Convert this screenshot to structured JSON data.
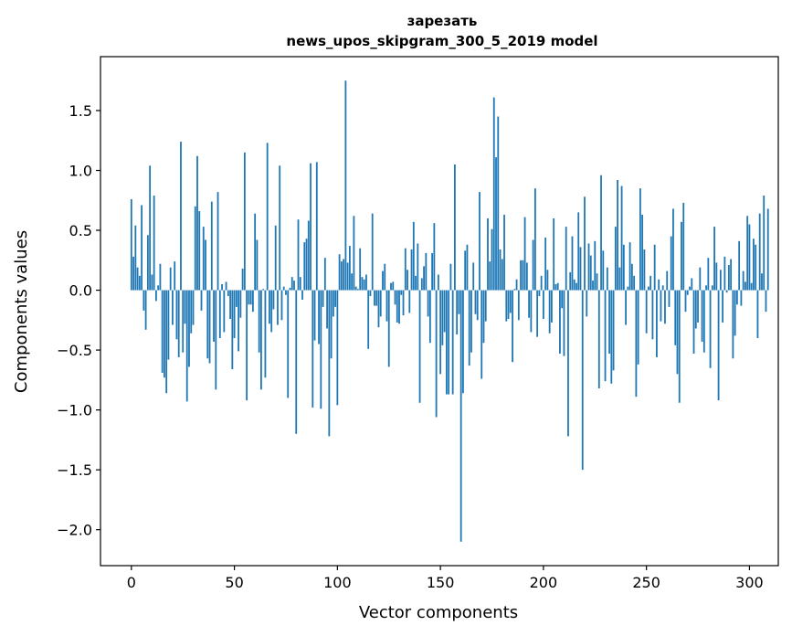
{
  "chart_data": {
    "type": "bar",
    "title": [
      "зарезать",
      "news_upos_skipgram_300_5_2019 model"
    ],
    "xlabel": "Vector components",
    "ylabel": "Components values",
    "xlim": [
      -15,
      314
    ],
    "ylim": [
      -2.3,
      1.95
    ],
    "xticks": [
      0,
      50,
      100,
      150,
      200,
      250,
      300
    ],
    "yticks": [
      -2.0,
      -1.5,
      -1.0,
      -0.5,
      0.0,
      0.5,
      1.0,
      1.5
    ],
    "xtick_labels": [
      "0",
      "50",
      "100",
      "150",
      "200",
      "250",
      "300"
    ],
    "ytick_labels": [
      "−2.0",
      "−1.5",
      "−1.0",
      "−0.5",
      "0.0",
      "0.5",
      "1.0",
      "1.5"
    ],
    "grid": false,
    "color": "#1f77b4",
    "x_start": 0,
    "values": [
      0.76,
      0.28,
      0.54,
      0.19,
      0.12,
      0.71,
      -0.17,
      -0.33,
      0.46,
      1.04,
      0.13,
      0.79,
      -0.09,
      0.04,
      0.22,
      -0.69,
      -0.73,
      -0.86,
      -0.58,
      0.19,
      -0.29,
      0.24,
      -0.41,
      -0.56,
      1.24,
      -0.52,
      -0.28,
      -0.93,
      -0.64,
      -0.36,
      -0.29,
      0.7,
      1.12,
      0.66,
      -0.17,
      0.53,
      0.42,
      -0.57,
      -0.61,
      0.74,
      -0.43,
      -0.83,
      0.82,
      -0.4,
      0.05,
      -0.35,
      0.07,
      -0.05,
      -0.24,
      -0.66,
      -0.4,
      -0.14,
      -0.51,
      -0.23,
      0.18,
      1.15,
      -0.92,
      -0.12,
      -0.12,
      -0.18,
      0.64,
      0.42,
      -0.52,
      -0.83,
      0.01,
      -0.73,
      1.23,
      -0.28,
      -0.35,
      -0.16,
      0.54,
      -0.29,
      1.04,
      -0.25,
      0.03,
      -0.04,
      -0.9,
      0.02,
      0.11,
      0.08,
      -1.2,
      0.59,
      0.11,
      -0.08,
      0.4,
      0.43,
      0.58,
      1.06,
      -0.98,
      -0.42,
      1.07,
      -0.45,
      -0.99,
      -0.14,
      0.27,
      -0.32,
      -1.22,
      -0.57,
      -0.22,
      -0.14,
      -0.96,
      0.3,
      0.24,
      0.26,
      1.75,
      0.23,
      0.37,
      0.14,
      0.62,
      0.03,
      0.01,
      0.35,
      0.11,
      0.09,
      0.13,
      -0.49,
      -0.05,
      0.64,
      -0.13,
      -0.13,
      -0.31,
      -0.22,
      0.16,
      0.22,
      -0.26,
      -0.64,
      0.06,
      0.07,
      -0.12,
      -0.27,
      -0.28,
      -0.04,
      -0.21,
      0.35,
      0.17,
      -0.19,
      0.34,
      0.57,
      0.12,
      0.39,
      -0.94,
      0.1,
      0.2,
      0.31,
      -0.22,
      -0.44,
      0.31,
      0.56,
      -1.06,
      0.13,
      -0.7,
      -0.46,
      -0.35,
      -0.87,
      -0.87,
      0.22,
      -0.87,
      1.05,
      -0.37,
      -0.2,
      -2.1,
      -0.86,
      0.33,
      0.38,
      -0.63,
      -0.52,
      0.23,
      -0.2,
      -0.25,
      0.82,
      -0.74,
      -0.44,
      -0.26,
      0.6,
      0.24,
      0.51,
      1.61,
      1.11,
      1.45,
      0.34,
      0.26,
      0.63,
      -0.26,
      -0.24,
      -0.19,
      -0.6,
      0.01,
      0.09,
      -0.25,
      0.25,
      0.25,
      0.61,
      0.23,
      -0.23,
      -0.35,
      0.42,
      0.85,
      -0.39,
      -0.05,
      0.12,
      -0.24,
      0.44,
      0.17,
      -0.36,
      -0.27,
      0.6,
      0.05,
      0.06,
      -0.53,
      -0.15,
      -0.55,
      0.53,
      -1.22,
      0.15,
      0.45,
      0.09,
      0.06,
      0.65,
      0.36,
      -1.5,
      0.78,
      -0.22,
      0.39,
      0.29,
      0.08,
      0.41,
      0.14,
      -0.82,
      0.96,
      0.33,
      -0.76,
      0.19,
      -0.53,
      -0.78,
      -0.67,
      0.53,
      0.92,
      0.19,
      0.87,
      0.38,
      -0.29,
      0.03,
      0.4,
      0.22,
      0.12,
      -0.89,
      -0.62,
      0.85,
      0.63,
      0.34,
      -0.36,
      0.03,
      0.12,
      -0.41,
      0.38,
      -0.56,
      0.09,
      -0.26,
      0.04,
      -0.28,
      0.16,
      -0.14,
      0.45,
      0.68,
      -0.46,
      -0.7,
      -0.94,
      0.57,
      0.73,
      -0.18,
      -0.04,
      0.03,
      0.1,
      -0.53,
      -0.32,
      -0.27,
      0.19,
      -0.43,
      -0.52,
      0.04,
      0.27,
      -0.65,
      0.04,
      0.53,
      0.23,
      -0.92,
      0.17,
      -0.27,
      0.28,
      -0.02,
      0.21,
      0.26,
      -0.57,
      -0.38,
      -0.12,
      0.41,
      -0.13,
      0.16,
      0.07,
      0.62,
      0.55,
      0.06,
      0.43,
      0.38,
      -0.4,
      0.64,
      0.14,
      0.79,
      -0.18,
      0.68
    ]
  }
}
